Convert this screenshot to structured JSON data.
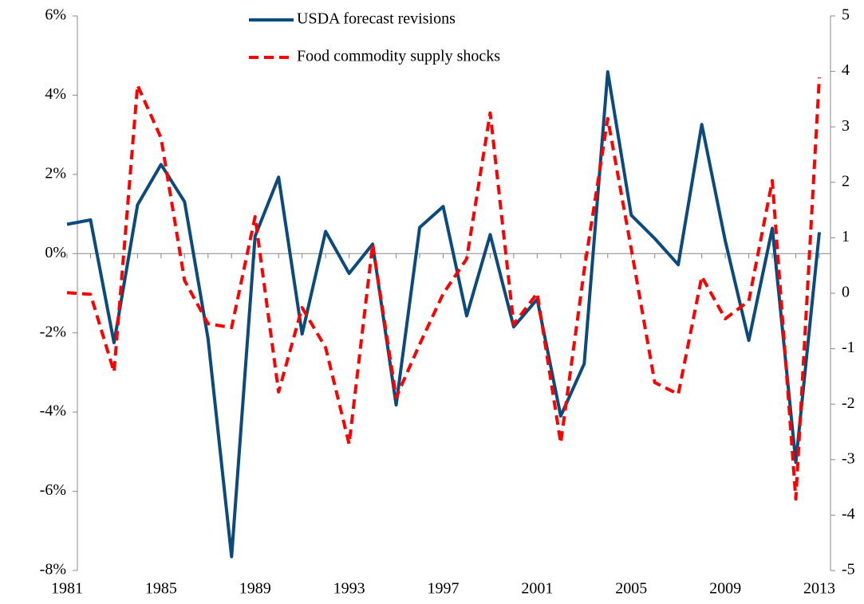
{
  "chart_data": {
    "type": "line",
    "x": [
      1981,
      1982,
      1983,
      1984,
      1985,
      1986,
      1987,
      1988,
      1989,
      1990,
      1991,
      1992,
      1993,
      1994,
      1995,
      1996,
      1997,
      1998,
      1999,
      2000,
      2001,
      2002,
      2003,
      2004,
      2005,
      2006,
      2007,
      2008,
      2009,
      2010,
      2011,
      2012,
      2013
    ],
    "xlim": [
      1981,
      2013
    ],
    "xticks": [
      1981,
      1985,
      1989,
      1993,
      1997,
      2001,
      2005,
      2009,
      2013
    ],
    "ylim": [
      -8,
      6
    ],
    "yticks": [
      {
        "value": -8,
        "label": "-8%"
      },
      {
        "value": -6,
        "label": "-6%"
      },
      {
        "value": -4,
        "label": "-4%"
      },
      {
        "value": -2,
        "label": "-2%"
      },
      {
        "value": 0,
        "label": "0%"
      },
      {
        "value": 2,
        "label": "2%"
      },
      {
        "value": 4,
        "label": "4%"
      },
      {
        "value": 6,
        "label": "6%"
      }
    ],
    "y2lim": [
      -5,
      5
    ],
    "y2ticks": [
      -5,
      -4,
      -3,
      -2,
      -1,
      0,
      1,
      2,
      3,
      4,
      5
    ],
    "series": [
      {
        "name": "USDA forecast revisions",
        "color": "#0b4a7d",
        "dashed": false,
        "values": [
          0.74,
          0.85,
          -2.25,
          1.23,
          2.25,
          1.31,
          -2.15,
          -7.65,
          0.44,
          1.93,
          -2.03,
          0.56,
          -0.5,
          0.24,
          -3.82,
          0.66,
          1.19,
          -1.57,
          0.48,
          -1.85,
          -1.15,
          -4.1,
          -2.78,
          4.59,
          0.97,
          0.38,
          -0.28,
          3.26,
          0.32,
          -2.19,
          0.64,
          -5.27,
          0.54
        ]
      },
      {
        "name": "Food commodity supply shocks",
        "color": "#ff0000",
        "dashed": true,
        "axis": "y2",
        "values": [
          0.01,
          -0.02,
          -1.42,
          3.75,
          2.8,
          0.23,
          -0.55,
          -0.62,
          1.38,
          -1.78,
          -0.26,
          -0.98,
          -2.72,
          0.88,
          -1.88,
          -0.92,
          -0.01,
          0.62,
          3.25,
          -0.56,
          0,
          -2.7,
          0.42,
          3.15,
          0.8,
          -1.61,
          -1.82,
          0.3,
          -0.46,
          -0.14,
          2.03,
          -3.71,
          3.89
        ]
      }
    ]
  }
}
